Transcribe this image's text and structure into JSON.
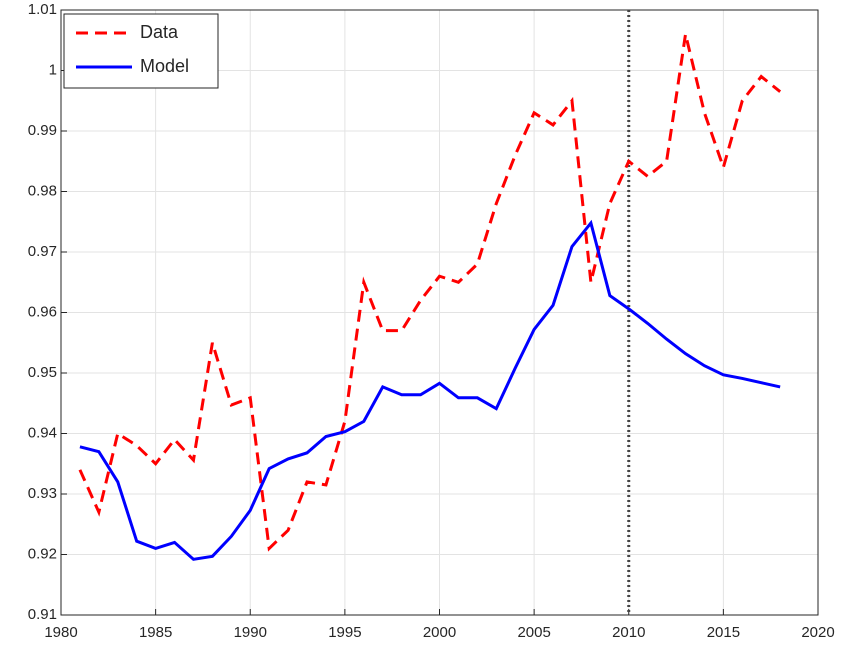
{
  "chart_data": {
    "type": "line",
    "x": [
      1981,
      1982,
      1983,
      1984,
      1985,
      1986,
      1987,
      1988,
      1989,
      1990,
      1991,
      1992,
      1993,
      1994,
      1995,
      1996,
      1997,
      1998,
      1999,
      2000,
      2001,
      2002,
      2003,
      2004,
      2005,
      2006,
      2007,
      2008,
      2009,
      2010,
      2011,
      2012,
      2013,
      2014,
      2015,
      2016,
      2017,
      2018
    ],
    "series": [
      {
        "name": "Data",
        "color": "#ff0000",
        "linestyle": "dashed",
        "values": [
          0.934,
          0.927,
          0.94,
          0.938,
          0.935,
          0.939,
          0.9356,
          0.955,
          0.9447,
          0.9459,
          0.921,
          0.924,
          0.932,
          0.9315,
          0.942,
          0.965,
          0.957,
          0.957,
          0.962,
          0.966,
          0.965,
          0.968,
          0.978,
          0.986,
          0.993,
          0.991,
          0.995,
          0.965,
          0.978,
          0.985,
          0.9825,
          0.985,
          1.006,
          0.993,
          0.984,
          0.995,
          0.999,
          0.9965
        ]
      },
      {
        "name": "Model",
        "color": "#0000ff",
        "linestyle": "solid",
        "values": [
          0.9378,
          0.937,
          0.932,
          0.9222,
          0.921,
          0.922,
          0.9192,
          0.9197,
          0.923,
          0.9273,
          0.9342,
          0.9358,
          0.9368,
          0.9395,
          0.9403,
          0.942,
          0.9477,
          0.9464,
          0.9464,
          0.9483,
          0.9459,
          0.9459,
          0.9441,
          0.9508,
          0.9572,
          0.9612,
          0.9709,
          0.9748,
          0.9628,
          0.9606,
          0.9582,
          0.9556,
          0.9532,
          0.9512,
          0.9497,
          0.9491,
          0.9484,
          0.9477
        ]
      }
    ],
    "vlines": [
      2010
    ],
    "xlim": [
      1980,
      2020
    ],
    "xticks": [
      1980,
      1985,
      1990,
      1995,
      2000,
      2005,
      2010,
      2015,
      2020
    ],
    "ylim": [
      0.91,
      1.01
    ],
    "yticks": [
      0.91,
      0.92,
      0.93,
      0.94,
      0.95,
      0.96,
      0.97,
      0.98,
      0.99,
      1,
      1.01
    ],
    "grid": true,
    "legend": "upper-left"
  }
}
